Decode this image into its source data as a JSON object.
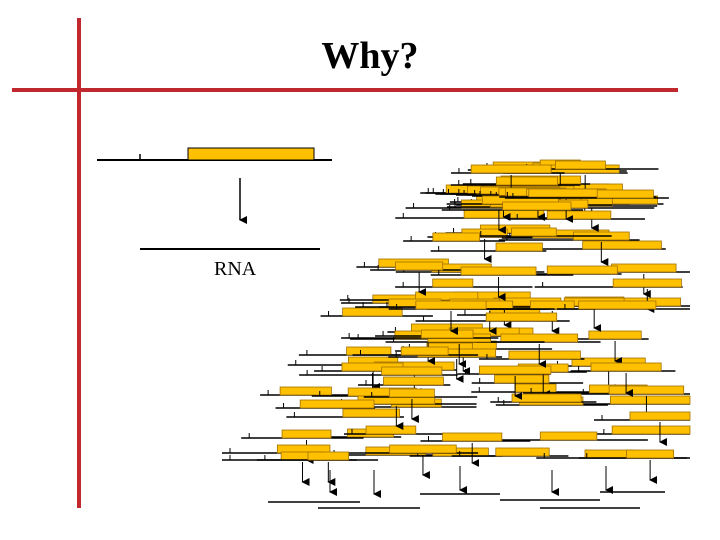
{
  "slide": {
    "title": "Why?",
    "rna_label": "RNA"
  },
  "colors": {
    "accent_red": "#c0282d",
    "gene_box_fill": "#ffc000",
    "gene_box_stroke": "#a07000",
    "line": "#000000"
  }
}
